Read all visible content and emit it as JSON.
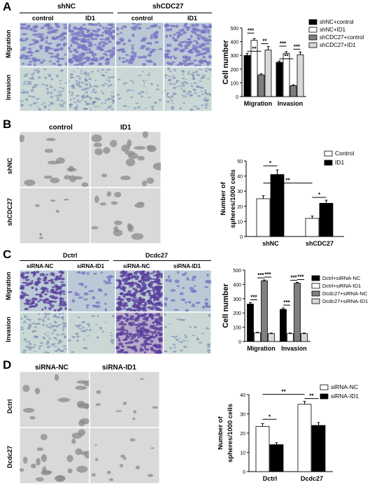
{
  "panels": {
    "A": {
      "letter": "A",
      "group_labels": [
        "shNC",
        "shCDC27"
      ],
      "column_labels": [
        "control",
        "ID1",
        "control",
        "ID1"
      ],
      "row_labels": [
        "Migration",
        "Invasion"
      ]
    },
    "B": {
      "letter": "B",
      "column_labels": [
        "control",
        "ID1"
      ],
      "row_labels": [
        "shNC",
        "shCDC27"
      ]
    },
    "C": {
      "letter": "C",
      "group_labels": [
        "Dctrl",
        "Dcdc27"
      ],
      "column_labels": [
        "siRNA-NC",
        "siRNA-ID1",
        "siRNA-NC",
        "siRNA-ID1"
      ],
      "row_labels": [
        "Migration",
        "Invasion"
      ]
    },
    "D": {
      "letter": "D",
      "column_labels": [
        "siRNA-NC",
        "siRNA-ID1"
      ],
      "row_labels": [
        "Dctrl",
        "Dcdc27"
      ]
    }
  },
  "colors": {
    "migration_stain": "#7a74c4",
    "invasion_stain": "#a8c4cc",
    "sphere_bg": "#d9d9d9",
    "dark_purple": "#5a3f9c"
  },
  "chart_data": [
    {
      "type": "bar",
      "ylabel": "Cell number",
      "categories": [
        "Migration",
        "Invasion"
      ],
      "ylim": [
        0,
        500
      ],
      "yticks": [
        "0",
        "100",
        "200",
        "300",
        "400",
        "500"
      ],
      "legend": "right",
      "series": [
        {
          "name": "shNC+control",
          "values": [
            300,
            250
          ],
          "errors": [
            15,
            10
          ],
          "fill": "#000000"
        },
        {
          "name": "shNC+ID1",
          "values": [
            410,
            315
          ],
          "errors": [
            12,
            12
          ],
          "fill": "#ffffff"
        },
        {
          "name": "shCDC27+control",
          "values": [
            158,
            80
          ],
          "errors": [
            8,
            6
          ],
          "fill": "#7f7f7f"
        },
        {
          "name": "shCDC27+ID1",
          "values": [
            340,
            305
          ],
          "errors": [
            25,
            20
          ],
          "fill": "#d8d8d8"
        }
      ],
      "sig_labels": [
        "***",
        "**",
        "**",
        "***",
        "**",
        "***"
      ]
    },
    {
      "type": "bar",
      "ylabel": "Number of spheres/1000 cells",
      "categories": [
        "shNC",
        "shCDC27"
      ],
      "ylim": [
        0,
        50
      ],
      "yticks": [
        "0",
        "10",
        "20",
        "30",
        "40",
        "50"
      ],
      "legend": "top-right",
      "series": [
        {
          "name": "Control",
          "values": [
            25,
            12
          ],
          "errors": [
            2,
            1.5
          ],
          "fill": "#ffffff"
        },
        {
          "name": "ID1",
          "values": [
            41,
            22
          ],
          "errors": [
            3,
            2
          ],
          "fill": "#000000"
        }
      ],
      "sig_labels": [
        "**",
        "*",
        "*"
      ]
    },
    {
      "type": "bar",
      "ylabel": "Cell number",
      "categories": [
        "Migration",
        "Invasion"
      ],
      "ylim": [
        0,
        500
      ],
      "yticks": [
        "0",
        "100",
        "200",
        "300",
        "400",
        "500"
      ],
      "legend": "right",
      "series": [
        {
          "name": "Dctrl+siRNA-NC",
          "values": [
            262,
            225
          ],
          "errors": [
            10,
            10
          ],
          "fill": "#000000"
        },
        {
          "name": "Dctrl+siRNA-ID1",
          "values": [
            60,
            55
          ],
          "errors": [
            4,
            4
          ],
          "fill": "#ffffff"
        },
        {
          "name": "Dcdc27+siRNA-NC",
          "values": [
            425,
            408
          ],
          "errors": [
            6,
            6
          ],
          "fill": "#7f7f7f"
        },
        {
          "name": "Dcdc27+siRNA-ID1",
          "values": [
            55,
            55
          ],
          "errors": [
            4,
            4
          ],
          "fill": "#d8d8d8"
        }
      ],
      "sig_labels": [
        "***",
        "***",
        "***",
        "***",
        "***",
        "***"
      ]
    },
    {
      "type": "bar",
      "ylabel": "Number of spheres/1000 cells",
      "categories": [
        "Dctrl",
        "Dcdc27"
      ],
      "ylim": [
        0,
        40
      ],
      "yticks": [
        "0",
        "10",
        "20",
        "30",
        "40"
      ],
      "legend": "top-right",
      "series": [
        {
          "name": "siRNA-NC",
          "values": [
            23.5,
            35
          ],
          "errors": [
            1.5,
            1.5
          ],
          "fill": "#ffffff"
        },
        {
          "name": "siRNA-ID1",
          "values": [
            14,
            24
          ],
          "errors": [
            1,
            1.5
          ],
          "fill": "#000000"
        }
      ],
      "sig_labels": [
        "**",
        "*",
        "**"
      ]
    }
  ]
}
